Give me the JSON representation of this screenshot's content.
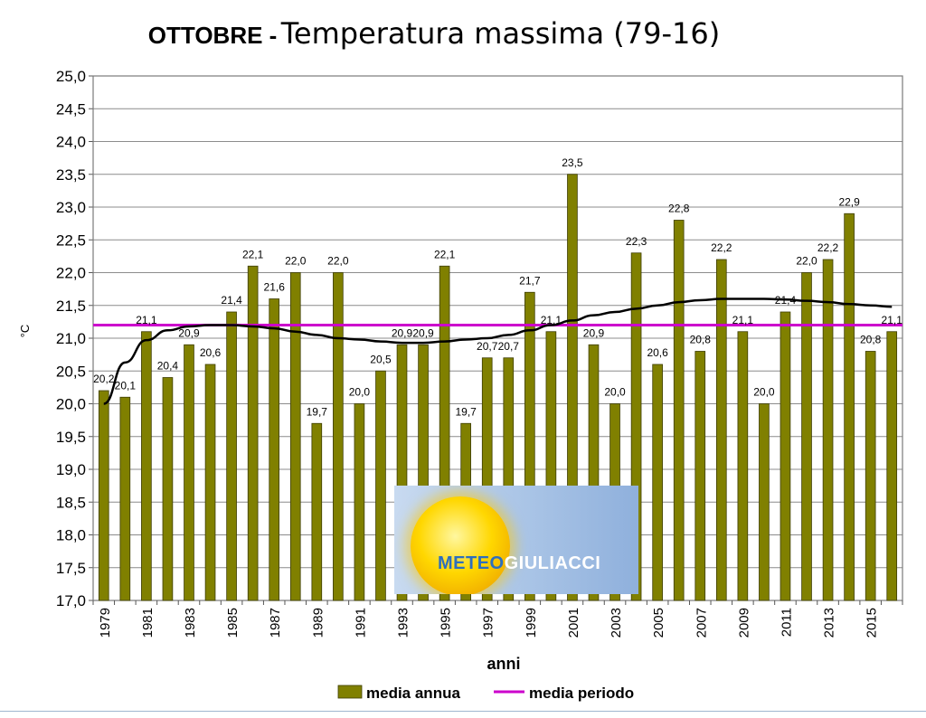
{
  "title": {
    "bold": "OTTOBRE -",
    "rest": "Temperatura massima (79-16)"
  },
  "logo": {
    "text_a": "METEO",
    "text_b": "GIULIACCI"
  },
  "chart_data": {
    "type": "bar",
    "xlabel": "anni",
    "ylabel": "°C",
    "ylim": [
      17.0,
      25.0
    ],
    "ytick_step": 0.5,
    "grid": true,
    "legend_placement": "bottom",
    "colors": {
      "bar": "#808000",
      "bar_edge": "#3c3c00",
      "mean_line": "#cc00cc",
      "trend": "#000000"
    },
    "categories": [
      "1979",
      "1980",
      "1981",
      "1982",
      "1983",
      "1984",
      "1985",
      "1986",
      "1987",
      "1988",
      "1989",
      "1990",
      "1991",
      "1992",
      "1993",
      "1994",
      "1995",
      "1996",
      "1997",
      "1998",
      "1999",
      "2000",
      "2001",
      "2002",
      "2003",
      "2004",
      "2005",
      "2006",
      "2007",
      "2008",
      "2009",
      "2010",
      "2011",
      "2012",
      "2013",
      "2014",
      "2015",
      "2016"
    ],
    "series": [
      {
        "name": "media annua",
        "values": [
          20.2,
          20.1,
          21.1,
          20.4,
          20.9,
          20.6,
          21.4,
          22.1,
          21.6,
          22.0,
          19.7,
          22.0,
          20.0,
          20.5,
          20.9,
          20.9,
          22.1,
          19.7,
          20.7,
          20.7,
          21.7,
          21.1,
          23.5,
          20.9,
          20.0,
          22.3,
          20.6,
          22.8,
          20.8,
          22.2,
          21.1,
          20.0,
          21.4,
          22.0,
          22.2,
          22.9,
          20.8,
          21.1
        ]
      },
      {
        "name": "media periodo",
        "value": 21.2
      }
    ],
    "trend": [
      20.0,
      20.63,
      20.97,
      21.12,
      21.18,
      21.2,
      21.2,
      21.18,
      21.15,
      21.1,
      21.05,
      21.0,
      20.98,
      20.95,
      20.93,
      20.93,
      20.95,
      20.98,
      21.0,
      21.05,
      21.12,
      21.2,
      21.27,
      21.35,
      21.4,
      21.45,
      21.5,
      21.55,
      21.58,
      21.6,
      21.6,
      21.6,
      21.59,
      21.57,
      21.55,
      21.52,
      21.5,
      21.48
    ]
  }
}
